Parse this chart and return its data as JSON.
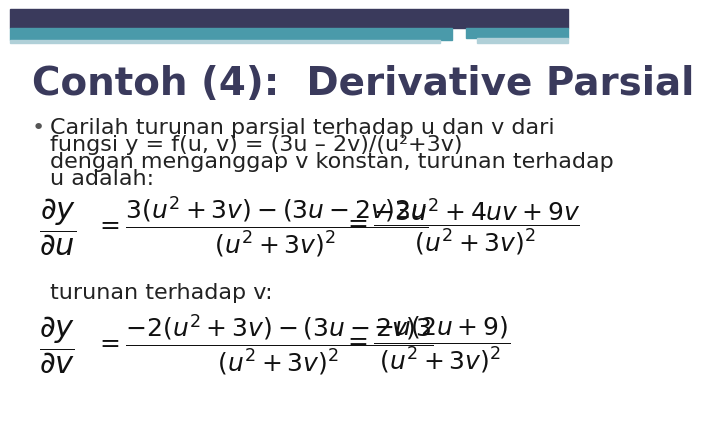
{
  "title": "Contoh (4):  Derivative Parsial",
  "title_color": "#3a3a5c",
  "title_fontsize": 28,
  "bg_color": "#ffffff",
  "header_bar1_color": "#3a3a5c",
  "header_bar2_color": "#4a9aaa",
  "header_bar3_color": "#b0d0d8",
  "bullet_text_line1": "Carilah turunan parsial terhadap u dan v dari",
  "bullet_text_line2": "fungsi y = f(u, v) = (3u – 2v)/(u²+3v)",
  "bullet_text_line3": "dengan menganggap v konstan, turunan terhadap",
  "bullet_text_line4": "u adalah:",
  "label_v": "turunan terhadap v:",
  "text_fontsize": 16,
  "formula_fontsize": 18,
  "lhs_fontsize": 22,
  "bullet_color": "#555555",
  "text_color": "#222222",
  "formula_color": "#111111"
}
